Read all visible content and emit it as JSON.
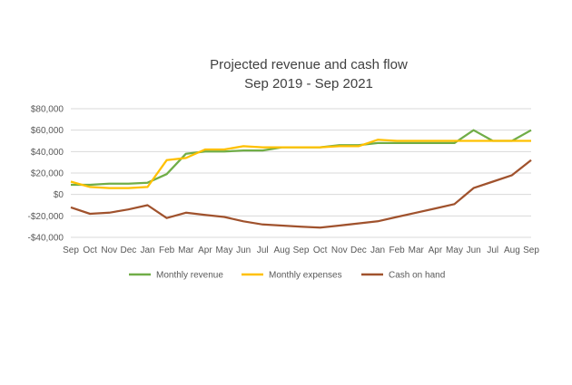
{
  "chart_data": {
    "type": "line",
    "title": "Projected revenue and cash flow",
    "subtitle": "Sep 2019 - Sep 2021",
    "xlabel": "",
    "ylabel": "",
    "categories": [
      "Sep",
      "Oct",
      "Nov",
      "Dec",
      "Jan",
      "Feb",
      "Mar",
      "Apr",
      "May",
      "Jun",
      "Jul",
      "Aug",
      "Sep",
      "Oct",
      "Nov",
      "Dec",
      "Jan",
      "Feb",
      "Mar",
      "Apr",
      "May",
      "Jun",
      "Jul",
      "Aug",
      "Sep"
    ],
    "ylim": [
      -40000,
      80000
    ],
    "yticks": [
      -40000,
      -20000,
      0,
      20000,
      40000,
      60000,
      80000
    ],
    "ytick_labels": [
      "-$40,000",
      "-$20,000",
      "$0",
      "$20,000",
      "$40,000",
      "$60,000",
      "$80,000"
    ],
    "grid": true,
    "legend_position": "bottom",
    "series": [
      {
        "name": "Monthly revenue",
        "color": "#70ad47",
        "values": [
          9000,
          9000,
          10000,
          10000,
          11000,
          19000,
          38000,
          40000,
          40000,
          41000,
          41000,
          44000,
          44000,
          44000,
          46000,
          46000,
          48000,
          48000,
          48000,
          48000,
          48000,
          60000,
          50000,
          50000,
          60000
        ]
      },
      {
        "name": "Monthly expenses",
        "color": "#ffc000",
        "values": [
          12000,
          7000,
          6000,
          6000,
          7000,
          32000,
          34000,
          42000,
          42000,
          45000,
          44000,
          44000,
          44000,
          44000,
          45000,
          45000,
          51000,
          50000,
          50000,
          50000,
          50000,
          50000,
          50000,
          50000,
          50000
        ]
      },
      {
        "name": "Cash on hand",
        "color": "#a0522d",
        "values": [
          -12000,
          -18000,
          -17000,
          -14000,
          -10000,
          -22000,
          -17000,
          -19000,
          -21000,
          -25000,
          -28000,
          -29000,
          -30000,
          -31000,
          -29000,
          -27000,
          -25000,
          -21000,
          -17000,
          -13000,
          -9000,
          6000,
          12000,
          18000,
          32000
        ]
      }
    ]
  }
}
